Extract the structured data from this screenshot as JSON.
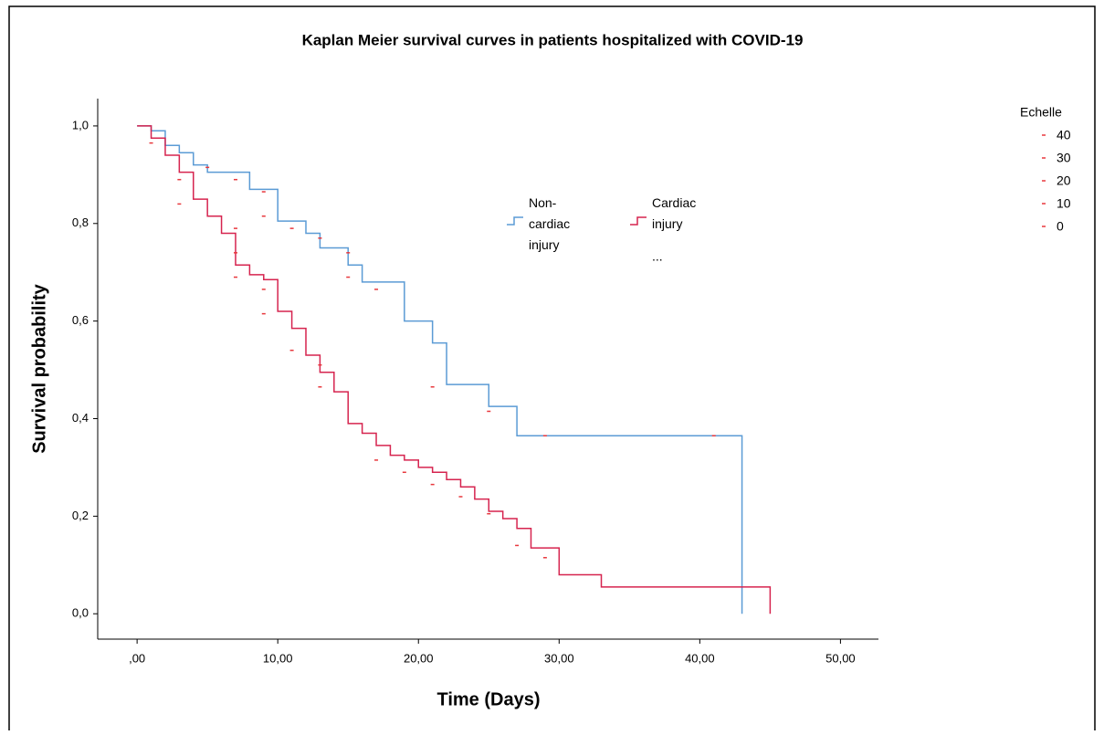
{
  "chart_data": {
    "type": "step",
    "title": "Kaplan Meier survival curves in patients hospitalized with COVID-19",
    "x_label": "Time (Days)",
    "y_label": "Survival probability",
    "xlim": [
      -2.8,
      52.7
    ],
    "ylim": [
      -0.052,
      1.056
    ],
    "xticks": [
      {
        "value": 0,
        "label": ",00"
      },
      {
        "value": 10,
        "label": "10,00"
      },
      {
        "value": 20,
        "label": "20,00"
      },
      {
        "value": 30,
        "label": "30,00"
      },
      {
        "value": 40,
        "label": "40,00"
      },
      {
        "value": 50,
        "label": "50,00"
      }
    ],
    "yticks": [
      {
        "value": 0,
        "label": "0,0"
      },
      {
        "value": 0.2,
        "label": "0,2"
      },
      {
        "value": 0.4,
        "label": "0,4"
      },
      {
        "value": 0.6,
        "label": "0,6"
      },
      {
        "value": 0.8,
        "label": "0,8"
      },
      {
        "value": 1,
        "label": "1,0"
      }
    ],
    "series": [
      {
        "name": "Non-cardiac injury",
        "color": "#5b9bd5",
        "x": [
          0,
          1,
          2,
          3,
          4,
          5,
          8,
          10,
          12,
          13,
          15,
          16,
          19,
          21,
          22,
          25,
          27,
          43
        ],
        "values": [
          1.0,
          0.99,
          0.96,
          0.945,
          0.92,
          0.905,
          0.87,
          0.805,
          0.78,
          0.75,
          0.715,
          0.68,
          0.6,
          0.555,
          0.47,
          0.425,
          0.365,
          0.0
        ]
      },
      {
        "name": "Cardiac injury",
        "color": "#d6244f",
        "x": [
          0,
          1,
          2,
          3,
          4,
          5,
          6,
          7,
          8,
          9,
          10,
          11,
          12,
          13,
          14,
          15,
          16,
          17,
          18,
          19,
          20,
          21,
          22,
          23,
          24,
          25,
          26,
          27,
          28,
          30,
          33,
          45
        ],
        "values": [
          1.0,
          0.975,
          0.94,
          0.905,
          0.85,
          0.815,
          0.78,
          0.715,
          0.695,
          0.685,
          0.62,
          0.585,
          0.53,
          0.495,
          0.455,
          0.39,
          0.37,
          0.345,
          0.325,
          0.315,
          0.3,
          0.29,
          0.275,
          0.26,
          0.235,
          0.21,
          0.195,
          0.175,
          0.135,
          0.08,
          0.055,
          0.0
        ]
      }
    ],
    "legend_more": "...",
    "censored": {
      "color": "#e8383d",
      "x": [
        1,
        3,
        3,
        5,
        7,
        9,
        9,
        11,
        7,
        7,
        7,
        9,
        9,
        11,
        13,
        13,
        13,
        15,
        15,
        17,
        17,
        19,
        21,
        21,
        23,
        25,
        25,
        27,
        29,
        29,
        41
      ],
      "values": [
        0.965,
        0.89,
        0.84,
        0.915,
        0.89,
        0.865,
        0.815,
        0.79,
        0.79,
        0.74,
        0.69,
        0.665,
        0.615,
        0.54,
        0.51,
        0.465,
        0.77,
        0.74,
        0.69,
        0.665,
        0.315,
        0.29,
        0.465,
        0.265,
        0.24,
        0.415,
        0.205,
        0.14,
        0.365,
        0.115,
        0.365
      ]
    },
    "size_legend": {
      "title": "Echelle",
      "labels": [
        40,
        30,
        20,
        10,
        0
      ]
    }
  }
}
